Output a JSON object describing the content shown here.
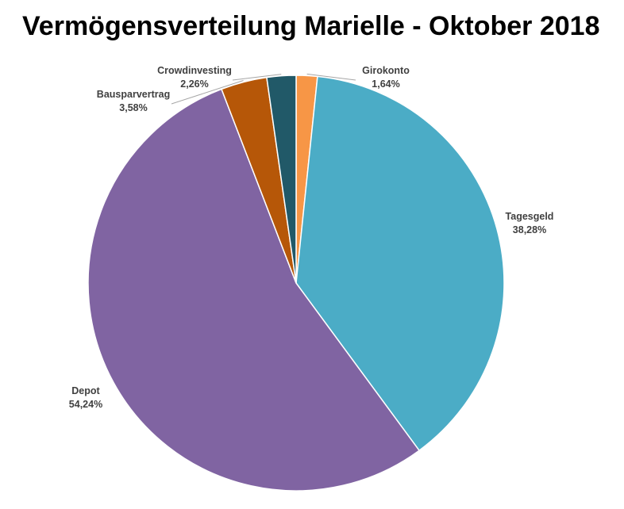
{
  "chart_data": {
    "type": "pie",
    "title": "Vermögensverteilung Marielle - Oktober 2018",
    "slices": [
      {
        "name": "Girokonto",
        "value": 1.64,
        "label": "1,64%",
        "color": "#F79646"
      },
      {
        "name": "Tagesgeld",
        "value": 38.28,
        "label": "38,28%",
        "color": "#4BACC6"
      },
      {
        "name": "Depot",
        "value": 54.24,
        "label": "54,24%",
        "color": "#8064A2"
      },
      {
        "name": "Bausparvertrag",
        "value": 3.58,
        "label": "3,58%",
        "color": "#B65708"
      },
      {
        "name": "Crowdinvesting",
        "value": 2.26,
        "label": "2,26%",
        "color": "#215968"
      }
    ],
    "legend": "none",
    "data_labels": "outside"
  }
}
